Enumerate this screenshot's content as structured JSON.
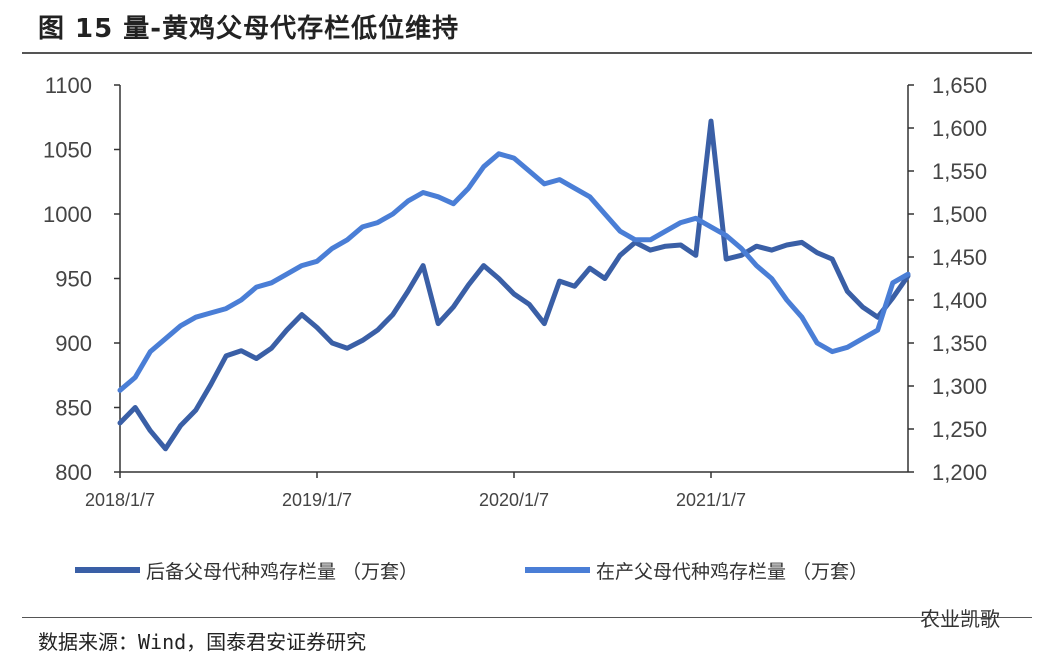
{
  "header": {
    "title": "图 15 量-黄鸡父母代存栏低位维持"
  },
  "footer": {
    "source": "数据来源：Wind，国泰君安证券研究",
    "brand": "农业凯歌"
  },
  "colors": {
    "series1": "#3a5fa6",
    "series2": "#4a7ed6",
    "axis": "#333333"
  },
  "chart_data": {
    "type": "line",
    "title": "图 15 量-黄鸡父母代存栏低位维持",
    "x_tick_labels": [
      "2018/1/7",
      "2019/1/7",
      "2020/1/7",
      "2021/1/7"
    ],
    "y_left": {
      "ylim": [
        800,
        1100
      ],
      "ticks": [
        "1100",
        "1050",
        "1000",
        "950",
        "900",
        "850",
        "800"
      ]
    },
    "y_right": {
      "ylim": [
        1200,
        1650
      ],
      "ticks": [
        "1,650",
        "1,600",
        "1,550",
        "1,500",
        "1,450",
        "1,400",
        "1,350",
        "1,300",
        "1,250",
        "1,200"
      ]
    },
    "legend_position": "bottom",
    "series": [
      {
        "name": "后备父母代种鸡存栏量 （万套）",
        "axis": "left",
        "x": [
          "2018/1/7",
          "2018/2/4",
          "2018/3/4",
          "2018/4/1",
          "2018/4/29",
          "2018/5/27",
          "2018/6/24",
          "2018/7/22",
          "2018/8/19",
          "2018/9/16",
          "2018/10/14",
          "2018/11/11",
          "2018/12/9",
          "2019/1/6",
          "2019/2/3",
          "2019/3/3",
          "2019/3/31",
          "2019/4/28",
          "2019/5/26",
          "2019/6/23",
          "2019/7/21",
          "2019/8/18",
          "2019/9/15",
          "2019/10/13",
          "2019/11/10",
          "2019/12/8",
          "2020/1/5",
          "2020/2/2",
          "2020/3/1",
          "2020/3/29",
          "2020/4/26",
          "2020/5/24",
          "2020/6/21",
          "2020/7/19",
          "2020/8/16",
          "2020/9/13",
          "2020/10/11",
          "2020/11/8",
          "2020/12/6",
          "2021/1/3",
          "2021/1/31",
          "2021/2/28",
          "2021/3/28",
          "2021/4/25",
          "2021/5/23",
          "2021/6/20",
          "2021/7/18",
          "2021/8/15",
          "2021/9/12",
          "2021/10/10",
          "2021/11/7",
          "2021/12/5",
          "2022/1/2"
        ],
        "values": [
          838,
          850,
          832,
          818,
          836,
          848,
          868,
          890,
          894,
          888,
          896,
          910,
          922,
          912,
          900,
          896,
          902,
          910,
          922,
          940,
          960,
          915,
          928,
          945,
          960,
          950,
          938,
          930,
          915,
          948,
          944,
          958,
          950,
          968,
          978,
          972,
          975,
          976,
          968,
          1072,
          965,
          968,
          975,
          972,
          976,
          978,
          970,
          965,
          940,
          928,
          920,
          935,
          952
        ]
      },
      {
        "name": "在产父母代种鸡存栏量 （万套）",
        "axis": "right",
        "x": [
          "2018/1/7",
          "2018/2/4",
          "2018/3/4",
          "2018/4/1",
          "2018/4/29",
          "2018/5/27",
          "2018/6/24",
          "2018/7/22",
          "2018/8/19",
          "2018/9/16",
          "2018/10/14",
          "2018/11/11",
          "2018/12/9",
          "2019/1/6",
          "2019/2/3",
          "2019/3/3",
          "2019/3/31",
          "2019/4/28",
          "2019/5/26",
          "2019/6/23",
          "2019/7/21",
          "2019/8/18",
          "2019/9/15",
          "2019/10/13",
          "2019/11/10",
          "2019/12/8",
          "2020/1/5",
          "2020/2/2",
          "2020/3/1",
          "2020/3/29",
          "2020/4/26",
          "2020/5/24",
          "2020/6/21",
          "2020/7/19",
          "2020/8/16",
          "2020/9/13",
          "2020/10/11",
          "2020/11/8",
          "2020/12/6",
          "2021/1/3",
          "2021/1/31",
          "2021/2/28",
          "2021/3/28",
          "2021/4/25",
          "2021/5/23",
          "2021/6/20",
          "2021/7/18",
          "2021/8/15",
          "2021/9/12",
          "2021/10/10",
          "2021/11/7",
          "2021/12/5",
          "2022/1/2"
        ],
        "values": [
          1295,
          1310,
          1340,
          1355,
          1370,
          1380,
          1385,
          1390,
          1400,
          1415,
          1420,
          1430,
          1440,
          1445,
          1460,
          1470,
          1485,
          1490,
          1500,
          1515,
          1525,
          1520,
          1512,
          1530,
          1555,
          1570,
          1565,
          1550,
          1535,
          1540,
          1530,
          1520,
          1500,
          1480,
          1470,
          1470,
          1480,
          1490,
          1495,
          1485,
          1475,
          1460,
          1440,
          1425,
          1400,
          1380,
          1350,
          1340,
          1345,
          1355,
          1365,
          1420,
          1430
        ]
      }
    ]
  }
}
